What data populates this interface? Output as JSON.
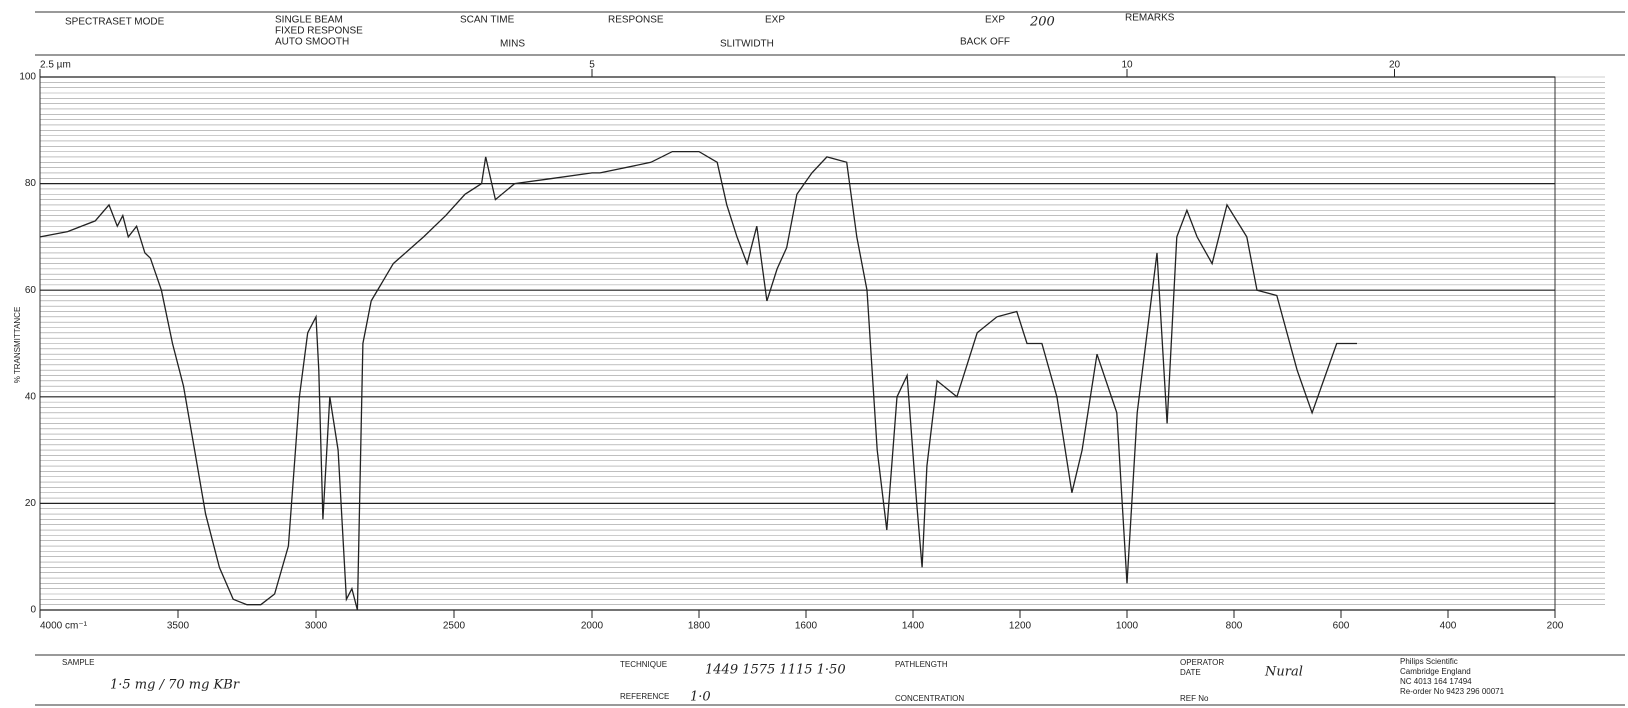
{
  "header": {
    "mode": "SPECTRASET MODE",
    "beam": "SINGLE BEAM",
    "response_type": "FIXED RESPONSE",
    "smooth": "AUTO SMOOTH",
    "scan_time": "SCAN TIME",
    "mins": "MINS",
    "response": "RESPONSE",
    "exp1": "EXP",
    "slitwidth": "SLITWIDTH",
    "exp2": "EXP",
    "exp2_value": "200",
    "back_off": "BACK OFF",
    "remarks": "REMARKS"
  },
  "chart_data": {
    "type": "line",
    "ylabel": "% TRANSMITTANCE",
    "x": [
      4000,
      3900,
      3800,
      3750,
      3720,
      3700,
      3680,
      3650,
      3620,
      3600,
      3560,
      3520,
      3480,
      3440,
      3400,
      3350,
      3300,
      3250,
      3200,
      3150,
      3100,
      3060,
      3030,
      3000,
      2990,
      2975,
      2950,
      2920,
      2890,
      2870,
      2850,
      2830,
      2800,
      2720,
      2610,
      2530,
      2460,
      2400,
      2385,
      2350,
      2280,
      2140,
      2000,
      1985,
      1890,
      1850,
      1800,
      1766,
      1748,
      1729,
      1710,
      1692,
      1673,
      1654,
      1636,
      1617,
      1589,
      1561,
      1524,
      1505,
      1486,
      1467,
      1449,
      1430,
      1411,
      1393,
      1383,
      1374,
      1355,
      1318,
      1280,
      1243,
      1206,
      1187,
      1159,
      1131,
      1103,
      1084,
      1056,
      1019,
      1000,
      981,
      944,
      925,
      907,
      888,
      869,
      841,
      813,
      776,
      757,
      720,
      682,
      654,
      608,
      570
    ],
    "values": [
      70,
      71,
      73,
      76,
      72,
      74,
      70,
      72,
      67,
      66,
      60,
      50,
      42,
      30,
      18,
      8,
      2,
      1,
      1,
      3,
      12,
      40,
      52,
      55,
      45,
      17,
      40,
      30,
      2,
      4,
      0,
      50,
      58,
      65,
      70,
      74,
      78,
      80,
      85,
      77,
      80,
      81,
      82,
      82,
      84,
      86,
      86,
      84,
      76,
      70,
      65,
      72,
      58,
      64,
      68,
      78,
      82,
      85,
      84,
      70,
      60,
      30,
      15,
      40,
      44,
      20,
      8,
      27,
      43,
      40,
      52,
      55,
      56,
      50,
      50,
      40,
      22,
      30,
      48,
      37,
      5,
      37,
      67,
      35,
      70,
      75,
      70,
      65,
      76,
      70,
      60,
      59,
      45,
      37,
      50,
      50
    ],
    "color": "#222222",
    "xlim": [
      4000,
      200
    ],
    "xticks": [
      {
        "value": 4000,
        "label": "4000 cm⁻¹"
      },
      3500,
      3000,
      2500,
      2000,
      1800,
      1600,
      1400,
      1200,
      1000,
      800,
      600,
      400,
      200
    ],
    "x2ticks": [
      {
        "value": 4000,
        "label": "2.5 µm"
      },
      {
        "value": 2000,
        "label": "5"
      },
      {
        "value": 1000,
        "label": "10"
      },
      {
        "value": 500,
        "label": "20"
      }
    ],
    "ylim": [
      0,
      100
    ],
    "yticks": [
      0,
      20,
      40,
      60,
      80,
      100
    ],
    "grid": true
  },
  "footer": {
    "sample": "SAMPLE",
    "sample_value": "1·5 mg / 70 mg KBr",
    "technique": "TECHNIQUE",
    "technique_value": "1449  1575  1115  1·50",
    "pathlength": "PATHLENGTH",
    "reference": "REFERENCE",
    "reference_value": "1·0",
    "concentration": "CONCENTRATION",
    "operator": "OPERATOR",
    "date": "DATE",
    "operator_value": "Nural",
    "ref_no": "REF No",
    "maker": "Philips Scientific",
    "city": "Cambridge England",
    "code": "NC 4013 164 17494",
    "reorder": "Re-order No 9423 296 00071"
  }
}
